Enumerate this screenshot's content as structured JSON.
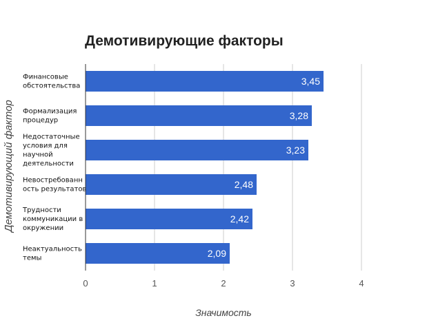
{
  "chart_data": {
    "type": "bar",
    "orientation": "horizontal",
    "title": "Демотивирующие факторы",
    "xlabel": "Значимость",
    "ylabel": "Демотивирующий фактор",
    "categories": [
      [
        "Финансовые",
        "обстоятельства"
      ],
      [
        "Формализация",
        "процедур"
      ],
      [
        "Недостаточные",
        "условия для",
        "научной",
        "деятельности"
      ],
      [
        "Невостребованн",
        "ость результатов"
      ],
      [
        "Трудности",
        "коммуникации в",
        "окружении"
      ],
      [
        "Неактуальность",
        "темы"
      ]
    ],
    "values": [
      3.45,
      3.28,
      3.23,
      2.48,
      2.42,
      2.09
    ],
    "value_labels": [
      "3,45",
      "3,28",
      "3,23",
      "2,48",
      "2,42",
      "2,09"
    ],
    "xlim": [
      0,
      4
    ],
    "xticks": [
      "0",
      "1",
      "2",
      "3",
      "4"
    ],
    "grid": true,
    "legend": "none",
    "colors": {
      "bar": "#3366cc",
      "grid": "#cccccc",
      "axis": "#333333"
    }
  }
}
